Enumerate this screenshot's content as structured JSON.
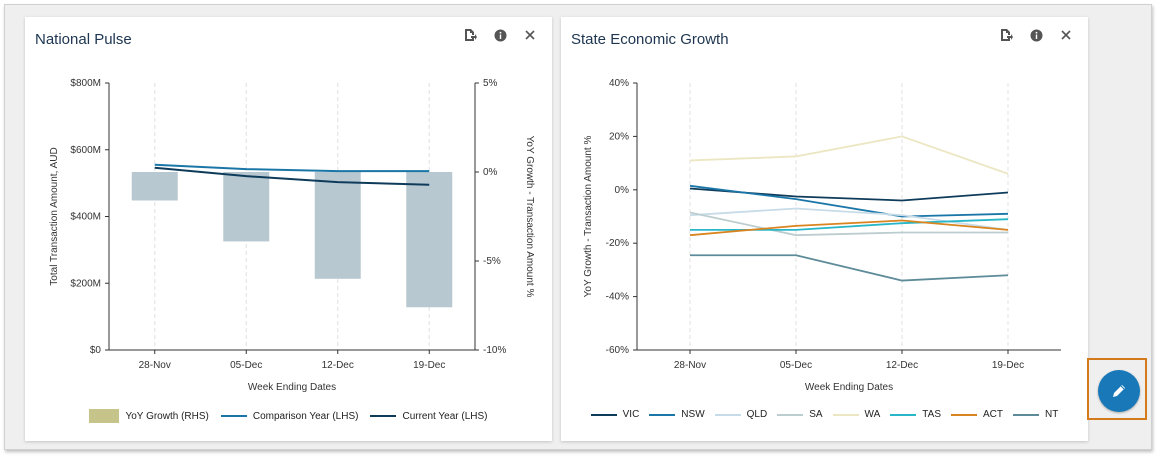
{
  "panels": {
    "national": {
      "title": "National Pulse",
      "legend": [
        {
          "label": "YoY Growth (RHS)",
          "color": "#c6c48a",
          "kind": "box"
        },
        {
          "label": "Comparison Year (LHS)",
          "color": "#1b76a8",
          "kind": "line"
        },
        {
          "label": "Current Year (LHS)",
          "color": "#0e3b5a",
          "kind": "line"
        }
      ]
    },
    "state": {
      "title": "State Economic Growth",
      "legend": [
        {
          "label": "VIC",
          "color": "#0e3b5a"
        },
        {
          "label": "NSW",
          "color": "#1b76a8"
        },
        {
          "label": "QLD",
          "color": "#c7dce8"
        },
        {
          "label": "SA",
          "color": "#bccdcf"
        },
        {
          "label": "WA",
          "color": "#ece7c2"
        },
        {
          "label": "TAS",
          "color": "#28b7c8"
        },
        {
          "label": "ACT",
          "color": "#d9841f"
        },
        {
          "label": "NT",
          "color": "#5e8b99"
        }
      ]
    }
  },
  "icons": {
    "export": "export-icon",
    "info": "info-icon",
    "close": "close-icon",
    "edit": "pencil-icon"
  },
  "chart_data": [
    {
      "type": "bar",
      "title": "National Pulse",
      "categories": [
        "28-Nov",
        "05-Dec",
        "12-Dec",
        "19-Dec"
      ],
      "xlabel": "Week Ending Dates",
      "ylabel": "Total Transaction Amount, AUD",
      "ylabel_right": "YoY Growth - Transaction Amount %",
      "ylim": [
        0,
        800
      ],
      "ylim_right": [
        -10,
        5
      ],
      "yticks": [
        "$0",
        "$200M",
        "$400M",
        "$600M",
        "$800M"
      ],
      "yticks_right": [
        "-10%",
        "-5%",
        "0%",
        "5%"
      ],
      "series": [
        {
          "name": "YoY Growth (RHS)",
          "kind": "bar",
          "axis": "right",
          "unit": "%",
          "values": [
            -1.6,
            -3.9,
            -6.0,
            -7.6
          ],
          "color": "#b8c8d0"
        },
        {
          "name": "Comparison Year (LHS)",
          "kind": "line",
          "axis": "left",
          "unit": "$M",
          "values": [
            555,
            542,
            536,
            536
          ],
          "color": "#1b76a8"
        },
        {
          "name": "Current Year (LHS)",
          "kind": "line",
          "axis": "left",
          "unit": "$M",
          "values": [
            546,
            521,
            503,
            495
          ],
          "color": "#0e3b5a"
        }
      ],
      "grid": "vertical",
      "legend": "bottom"
    },
    {
      "type": "line",
      "title": "State Economic Growth",
      "categories": [
        "28-Nov",
        "05-Dec",
        "12-Dec",
        "19-Dec"
      ],
      "xlabel": "Week Ending Dates",
      "ylabel": "YoY Growth - Transaction Amount %",
      "ylim": [
        -60,
        40
      ],
      "yticks": [
        "-60%",
        "-40%",
        "-20%",
        "0%",
        "20%",
        "40%"
      ],
      "series": [
        {
          "name": "VIC",
          "values": [
            0.5,
            -2.5,
            -4,
            -1
          ],
          "color": "#0e3b5a"
        },
        {
          "name": "NSW",
          "values": [
            1.5,
            -3.5,
            -10,
            -9
          ],
          "color": "#1b76a8"
        },
        {
          "name": "QLD",
          "values": [
            -9.5,
            -7,
            -9.5,
            -15
          ],
          "color": "#c7dce8"
        },
        {
          "name": "SA",
          "values": [
            -8.5,
            -17,
            -16,
            -16
          ],
          "color": "#bccdcf"
        },
        {
          "name": "WA",
          "values": [
            11,
            12.5,
            20,
            6
          ],
          "color": "#ece7c2"
        },
        {
          "name": "TAS",
          "values": [
            -15,
            -15,
            -12.5,
            -11
          ],
          "color": "#28b7c8"
        },
        {
          "name": "ACT",
          "values": [
            -17,
            -13.5,
            -11.5,
            -15
          ],
          "color": "#d9841f"
        },
        {
          "name": "NT",
          "values": [
            -24.5,
            -24.5,
            -34,
            -32
          ],
          "color": "#5e8b99"
        }
      ],
      "grid": "vertical",
      "legend": "bottom"
    }
  ]
}
